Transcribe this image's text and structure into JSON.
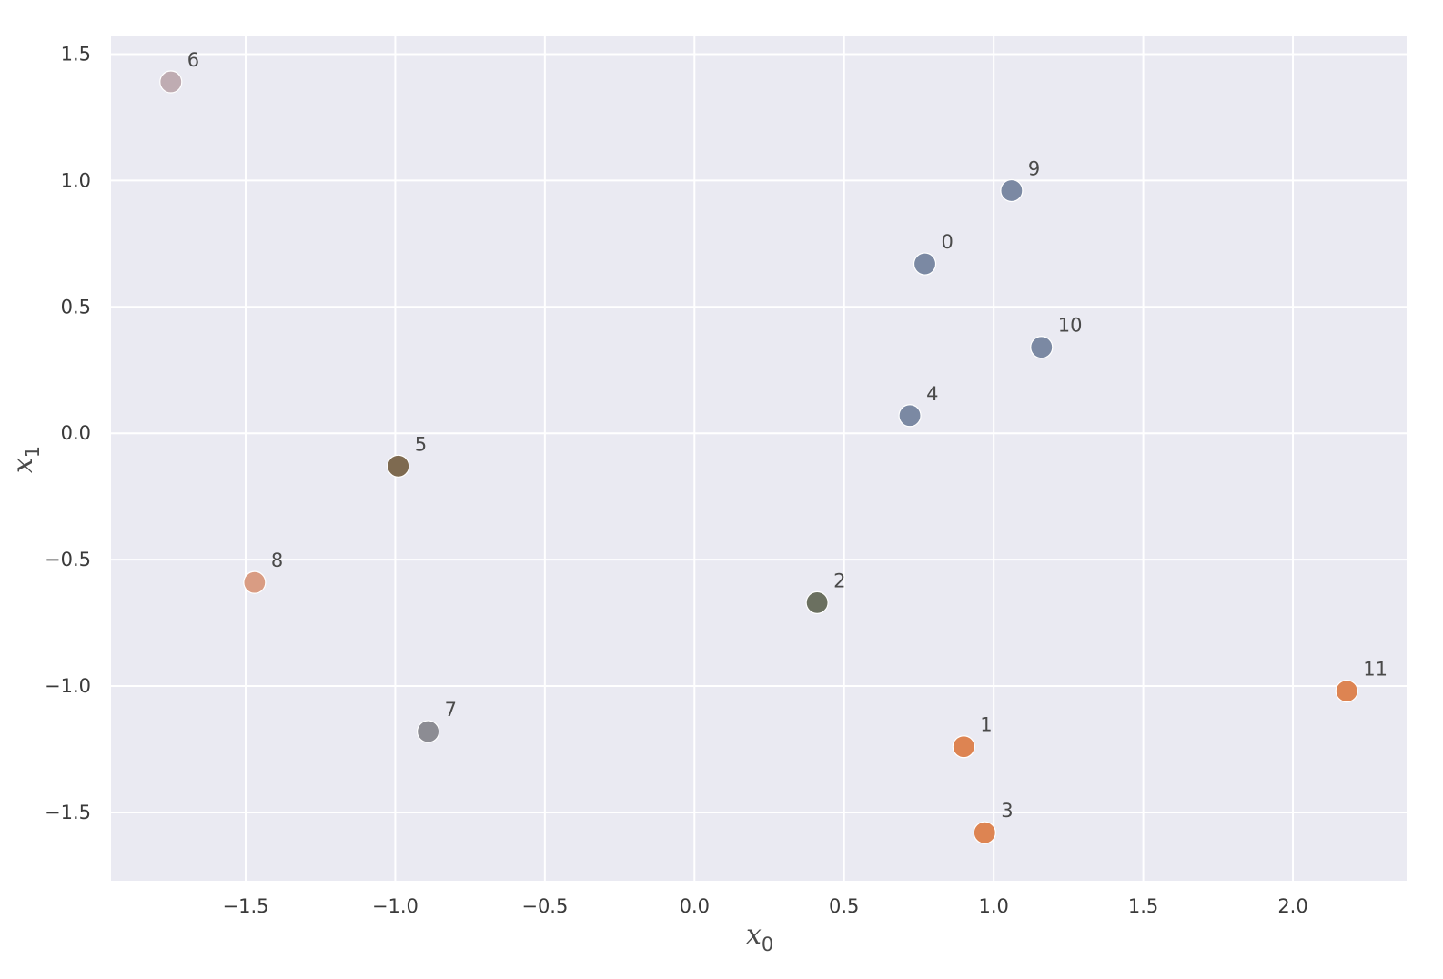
{
  "chart_data": {
    "type": "scatter",
    "title": "",
    "xlabel": {
      "base": "x",
      "sub": "0"
    },
    "ylabel": {
      "base": "x",
      "sub": "1"
    },
    "xlim": [
      -1.95,
      2.38
    ],
    "ylim": [
      -1.77,
      1.57
    ],
    "xticks": [
      -1.5,
      -1.0,
      -0.5,
      0.0,
      0.5,
      1.0,
      1.5,
      2.0
    ],
    "yticks": [
      -1.5,
      -1.0,
      -0.5,
      0.0,
      0.5,
      1.0,
      1.5
    ],
    "xtick_labels": [
      "−1.5",
      "−1.0",
      "−0.5",
      "0.0",
      "0.5",
      "1.0",
      "1.5",
      "2.0"
    ],
    "ytick_labels": [
      "−1.5",
      "−1.0",
      "−0.5",
      "0.0",
      "0.5",
      "1.0",
      "1.5"
    ],
    "grid": true,
    "background": "#eaeaf2",
    "grid_color": "#ffffff",
    "points": [
      {
        "label": "0",
        "x": 0.77,
        "y": 0.67,
        "color": "#7b89a3"
      },
      {
        "label": "1",
        "x": 0.9,
        "y": -1.24,
        "color": "#dd8452"
      },
      {
        "label": "2",
        "x": 0.41,
        "y": -0.67,
        "color": "#6b7060"
      },
      {
        "label": "3",
        "x": 0.97,
        "y": -1.58,
        "color": "#dd8452"
      },
      {
        "label": "4",
        "x": 0.72,
        "y": 0.07,
        "color": "#7b89a3"
      },
      {
        "label": "5",
        "x": -0.99,
        "y": -0.13,
        "color": "#7e6a50"
      },
      {
        "label": "6",
        "x": -1.75,
        "y": 1.39,
        "color": "#bfacb2"
      },
      {
        "label": "7",
        "x": -0.89,
        "y": -1.18,
        "color": "#8c8c93"
      },
      {
        "label": "8",
        "x": -1.47,
        "y": -0.59,
        "color": "#d99c83"
      },
      {
        "label": "9",
        "x": 1.06,
        "y": 0.96,
        "color": "#7b89a3"
      },
      {
        "label": "10",
        "x": 1.16,
        "y": 0.34,
        "color": "#7b89a3"
      },
      {
        "label": "11",
        "x": 2.18,
        "y": -1.02,
        "color": "#dd8452"
      }
    ]
  }
}
